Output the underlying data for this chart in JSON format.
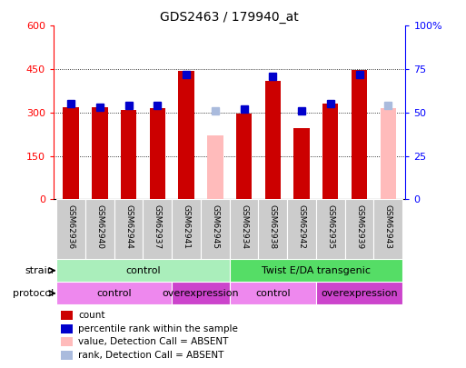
{
  "title": "GDS2463 / 179940_at",
  "samples": [
    "GSM62936",
    "GSM62940",
    "GSM62944",
    "GSM62937",
    "GSM62941",
    "GSM62945",
    "GSM62934",
    "GSM62938",
    "GSM62942",
    "GSM62935",
    "GSM62939",
    "GSM62943"
  ],
  "counts": [
    320,
    318,
    308,
    315,
    445,
    null,
    298,
    408,
    245,
    330,
    447,
    null
  ],
  "absent_counts": [
    null,
    null,
    null,
    null,
    null,
    220,
    null,
    null,
    null,
    null,
    null,
    315
  ],
  "percentile_ranks": [
    55,
    53,
    54,
    54,
    72,
    null,
    52,
    71,
    51,
    55,
    72,
    null
  ],
  "absent_ranks": [
    null,
    null,
    null,
    null,
    null,
    51,
    null,
    null,
    null,
    null,
    null,
    54
  ],
  "bar_color_present": "#cc0000",
  "bar_color_absent": "#ffbbbb",
  "rank_color_present": "#0000cc",
  "rank_color_absent": "#aabbdd",
  "ylim_left": [
    0,
    600
  ],
  "ylim_right": [
    0,
    100
  ],
  "yticks_left": [
    0,
    150,
    300,
    450,
    600
  ],
  "yticks_right": [
    0,
    25,
    50,
    75,
    100
  ],
  "ytick_labels_right": [
    "0",
    "25",
    "50",
    "75",
    "100%"
  ],
  "strain_groups": [
    {
      "label": "control",
      "start": 0,
      "end": 6,
      "color": "#aaeebb"
    },
    {
      "label": "Twist E/DA transgenic",
      "start": 6,
      "end": 12,
      "color": "#55dd66"
    }
  ],
  "protocol_groups": [
    {
      "label": "control",
      "start": 0,
      "end": 4,
      "color": "#ee88ee"
    },
    {
      "label": "overexpression",
      "start": 4,
      "end": 6,
      "color": "#cc44cc"
    },
    {
      "label": "control",
      "start": 6,
      "end": 9,
      "color": "#ee88ee"
    },
    {
      "label": "overexpression",
      "start": 9,
      "end": 12,
      "color": "#cc44cc"
    }
  ],
  "strain_label": "strain",
  "protocol_label": "protocol",
  "legend_items": [
    {
      "label": "count",
      "color": "#cc0000"
    },
    {
      "label": "percentile rank within the sample",
      "color": "#0000cc"
    },
    {
      "label": "value, Detection Call = ABSENT",
      "color": "#ffbbbb"
    },
    {
      "label": "rank, Detection Call = ABSENT",
      "color": "#aabbdd"
    }
  ],
  "background_color": "#ffffff",
  "tick_bg_color": "#cccccc",
  "bar_width": 0.55
}
